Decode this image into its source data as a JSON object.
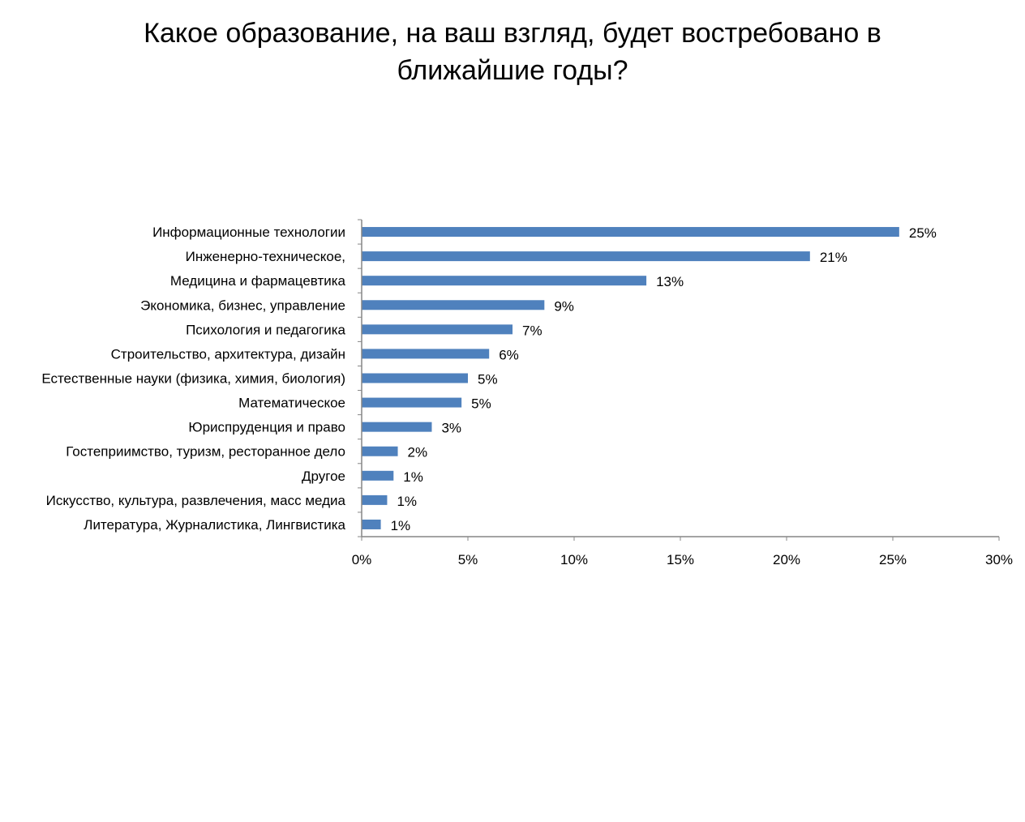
{
  "chart_data": {
    "type": "bar",
    "orientation": "horizontal",
    "title_lines": [
      "Какое образование, на ваш взгляд, будет востребовано в",
      "ближайшие годы?"
    ],
    "categories": [
      "Информационные технологии",
      "Инженерно-техническое,",
      "Медицина и фармацевтика",
      "Экономика, бизнес, управление",
      "Психология и педагогика",
      "Строительство, архитектура, дизайн",
      "Естественные науки (физика, химия, биология)",
      "Математическое",
      "Юриспруденция и право",
      "Гостеприимство, туризм,  ресторанное дело",
      "Другое",
      "Искусство, культура, развлечения, масс медиа",
      "Литература, Журналистика, Лингвистика"
    ],
    "values": [
      25.3,
      21.1,
      13.4,
      8.6,
      7.1,
      6.0,
      5.0,
      4.7,
      3.3,
      1.7,
      1.5,
      1.2,
      0.9
    ],
    "value_labels": [
      "25%",
      "21%",
      "13%",
      "9%",
      "7%",
      "6%",
      "5%",
      "5%",
      "3%",
      "2%",
      "1%",
      "1%",
      "1%"
    ],
    "xlim": [
      0,
      30
    ],
    "xticks": [
      0,
      5,
      10,
      15,
      20,
      25,
      30
    ],
    "xtick_labels": [
      "0%",
      "5%",
      "10%",
      "15%",
      "20%",
      "25%",
      "30%"
    ],
    "grid": false,
    "legend": "none",
    "bar_color": "#4f81bd",
    "axis_color": "#868686"
  }
}
